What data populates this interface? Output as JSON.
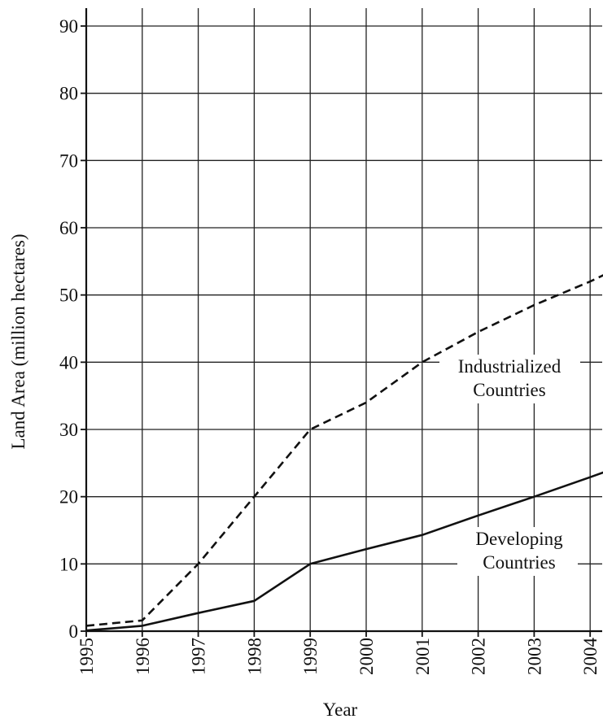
{
  "chart_data": {
    "type": "line",
    "title": "",
    "xlabel": "Year",
    "ylabel": "Land Area (million hectares)",
    "x": [
      1995,
      1996,
      1997,
      1998,
      1999,
      2000,
      2001,
      2002,
      2003,
      2004
    ],
    "x_tick_labels": [
      "1995",
      "1996",
      "1997",
      "1998",
      "1999",
      "2000",
      "2001",
      "2002",
      "2003",
      "2004"
    ],
    "y_ticks": [
      0,
      10,
      20,
      30,
      40,
      50,
      60,
      70,
      80,
      90
    ],
    "y_tick_labels": [
      "0",
      "10",
      "20",
      "30",
      "40",
      "50",
      "60",
      "70",
      "80",
      "90"
    ],
    "xlim": [
      1995,
      2004.3
    ],
    "ylim": [
      0,
      90
    ],
    "grid": true,
    "series": [
      {
        "name": "Industrialized Countries",
        "label_lines": [
          "Industrialized",
          "Countries"
        ],
        "style": "dashed",
        "x": [
          1995,
          1996,
          1997,
          1998,
          1999,
          2000,
          2001,
          2002,
          2003,
          2004,
          2004.3
        ],
        "values": [
          0.8,
          1.6,
          10,
          20,
          30,
          34,
          40,
          44.5,
          48.5,
          52,
          53.2
        ]
      },
      {
        "name": "Developing Countries",
        "label_lines": [
          "Developing",
          "Countries"
        ],
        "style": "solid",
        "x": [
          1995,
          1996,
          1997,
          1998,
          1999,
          2000,
          2001,
          2002,
          2003,
          2004,
          2004.3
        ],
        "values": [
          0.1,
          0.8,
          2.7,
          4.5,
          10,
          12.2,
          14.3,
          17.2,
          20,
          22.9,
          23.8
        ]
      }
    ]
  }
}
